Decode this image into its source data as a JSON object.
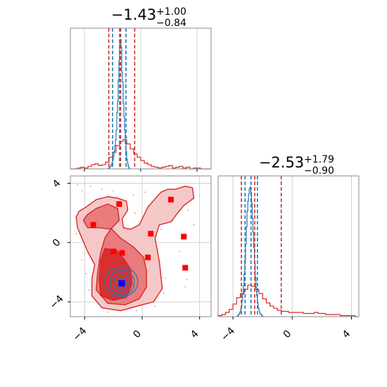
{
  "chart_data": {
    "type": "corner",
    "colors": {
      "red": "#d62728",
      "blue": "#1f77b4",
      "grid": "#d0d0d0",
      "axis": "#888888"
    },
    "panels": [
      {
        "id": "hist-param1",
        "type": "histogram",
        "title": {
          "main": "−1.43",
          "sup": "+1.00",
          "sub": "−0.84"
        },
        "xlim": [
          -5,
          5
        ],
        "xticks": [
          -4,
          0,
          4
        ],
        "quantile_lines": {
          "red": [
            -2.27,
            -1.43,
            -0.43
          ],
          "blue": [
            -2.0,
            -1.5,
            -1.05
          ]
        },
        "series": [
          {
            "name": "red",
            "bin_width": 0.25,
            "x": [
              -5.0,
              -4.75,
              -4.5,
              -4.25,
              -4.0,
              -3.75,
              -3.5,
              -3.25,
              -3.0,
              -2.75,
              -2.5,
              -2.25,
              -2.0,
              -1.75,
              -1.5,
              -1.25,
              -1.0,
              -0.75,
              -0.5,
              -0.25,
              0.0,
              0.25,
              0.5,
              0.75,
              1.0,
              1.25,
              1.5,
              1.75,
              2.0,
              2.25,
              2.5,
              2.75,
              3.0,
              3.25,
              3.5,
              3.75,
              4.0,
              4.25,
              4.5,
              4.75
            ],
            "counts": [
              0,
              0,
              1,
              2,
              1,
              3,
              5,
              6,
              4,
              5,
              8,
              14,
              20,
              28,
              33,
              35,
              30,
              24,
              18,
              14,
              10,
              7,
              5,
              3,
              2,
              1,
              2,
              3,
              4,
              1,
              2,
              3,
              1,
              2,
              0,
              1,
              1,
              0,
              0,
              0
            ]
          },
          {
            "name": "blue",
            "bin_width": 0.05,
            "x": [
              -2.3,
              -2.25,
              -2.2,
              -2.15,
              -2.1,
              -2.05,
              -2.0,
              -1.95,
              -1.9,
              -1.85,
              -1.8,
              -1.75,
              -1.7,
              -1.65,
              -1.6,
              -1.55,
              -1.5,
              -1.45,
              -1.4,
              -1.35,
              -1.3,
              -1.25,
              -1.2,
              -1.15,
              -1.1,
              -1.05,
              -1.0,
              -0.95,
              -0.9,
              -0.85,
              -0.8
            ],
            "counts": [
              1,
              1,
              2,
              3,
              4,
              6,
              9,
              13,
              18,
              24,
              30,
              40,
              58,
              70,
              92,
              112,
              130,
              134,
              126,
              100,
              90,
              68,
              54,
              40,
              26,
              18,
              10,
              6,
              3,
              1,
              0
            ]
          }
        ]
      },
      {
        "id": "hist-param2",
        "type": "histogram",
        "title": {
          "main": "−2.53",
          "sup": "+1.79",
          "sub": "−0.90"
        },
        "xlim": [
          -5,
          4.5
        ],
        "xticks": [
          -4,
          0,
          4
        ],
        "quantile_lines": {
          "red": [
            -3.43,
            -2.53,
            -0.74
          ],
          "blue": [
            -3.18,
            -2.78,
            -2.35
          ]
        },
        "series": [
          {
            "name": "red",
            "bin_width": 0.25,
            "x": [
              -5.0,
              -4.75,
              -4.5,
              -4.25,
              -4.0,
              -3.75,
              -3.5,
              -3.25,
              -3.0,
              -2.75,
              -2.5,
              -2.25,
              -2.0,
              -1.75,
              -1.5,
              -1.25,
              -1.0,
              -0.75,
              -0.5,
              -0.25,
              0.0,
              0.25,
              0.5,
              0.75,
              1.0,
              1.25,
              1.5,
              1.75,
              2.0,
              2.25,
              2.5,
              2.75,
              3.0,
              3.25,
              3.5,
              3.75,
              4.0,
              4.25
            ],
            "counts": [
              1,
              2,
              4,
              7,
              12,
              18,
              22,
              26,
              30,
              29,
              26,
              22,
              17,
              13,
              10,
              8,
              6,
              5,
              5,
              4,
              4,
              4,
              4,
              3,
              3,
              3,
              4,
              3,
              3,
              2,
              2,
              2,
              2,
              1,
              1,
              1,
              1,
              0
            ]
          },
          {
            "name": "blue",
            "bin_width": 0.05,
            "x": [
              -3.7,
              -3.65,
              -3.6,
              -3.55,
              -3.5,
              -3.45,
              -3.4,
              -3.35,
              -3.3,
              -3.25,
              -3.2,
              -3.15,
              -3.1,
              -3.05,
              -3.0,
              -2.95,
              -2.9,
              -2.85,
              -2.8,
              -2.75,
              -2.7,
              -2.65,
              -2.6,
              -2.55,
              -2.5,
              -2.45,
              -2.4,
              -2.35,
              -2.3,
              -2.25,
              -2.2,
              -2.15,
              -2.1,
              -2.05,
              -2.0
            ],
            "counts": [
              1,
              2,
              3,
              5,
              8,
              12,
              18,
              26,
              36,
              50,
              66,
              84,
              104,
              122,
              134,
              142,
              148,
              150,
              144,
              132,
              114,
              98,
              80,
              62,
              46,
              34,
              24,
              16,
              10,
              7,
              4,
              3,
              2,
              1,
              0
            ]
          }
        ]
      },
      {
        "id": "scatter-2d",
        "type": "contour-scatter",
        "xlim": [
          -5,
          4.8
        ],
        "ylim": [
          -5,
          4.5
        ],
        "xticks": [
          -4,
          0,
          4
        ],
        "yticks": [
          -4,
          0,
          4
        ],
        "red_contour_levels": [
          [
            [
              -4.6,
              1.7
            ],
            [
              -4.4,
              2.1
            ],
            [
              -3.9,
              2.4
            ],
            [
              -3.2,
              2.9
            ],
            [
              -2.4,
              3.1
            ],
            [
              -1.7,
              3.0
            ],
            [
              -1.1,
              2.8
            ],
            [
              -1.0,
              2.2
            ],
            [
              -1.4,
              1.6
            ],
            [
              -1.3,
              1.0
            ],
            [
              -0.8,
              0.9
            ],
            [
              -0.2,
              1.2
            ],
            [
              0.4,
              2.4
            ],
            [
              1.3,
              3.4
            ],
            [
              1.8,
              3.6
            ],
            [
              2.3,
              3.6
            ],
            [
              3.0,
              3.8
            ],
            [
              3.5,
              3.7
            ],
            [
              3.6,
              3.0
            ],
            [
              2.9,
              2.5
            ],
            [
              2.4,
              1.9
            ],
            [
              2.0,
              1.4
            ],
            [
              1.2,
              1.2
            ],
            [
              0.9,
              0.3
            ],
            [
              1.2,
              -1.3
            ],
            [
              1.4,
              -3.1
            ],
            [
              0.8,
              -4.0
            ],
            [
              0.0,
              -4.2
            ],
            [
              -1.5,
              -4.6
            ],
            [
              -2.8,
              -4.4
            ],
            [
              -3.5,
              -3.6
            ],
            [
              -3.5,
              -2.4
            ],
            [
              -3.3,
              -1.5
            ],
            [
              -3.8,
              -0.6
            ],
            [
              -4.2,
              0.3
            ],
            [
              -4.5,
              1.0
            ]
          ],
          [
            [
              -4.1,
              1.5
            ],
            [
              -3.8,
              1.9
            ],
            [
              -3.2,
              2.3
            ],
            [
              -2.4,
              2.6
            ],
            [
              -1.7,
              2.3
            ],
            [
              -1.6,
              1.5
            ],
            [
              -2.2,
              0.9
            ],
            [
              -2.6,
              0.3
            ],
            [
              -2.9,
              -0.7
            ],
            [
              -3.1,
              -2.0
            ],
            [
              -3.2,
              -3.2
            ],
            [
              -2.4,
              -4.1
            ],
            [
              -1.2,
              -4.2
            ],
            [
              -0.2,
              -3.8
            ],
            [
              0.3,
              -3.0
            ],
            [
              0.3,
              -1.9
            ],
            [
              0.1,
              -1.0
            ],
            [
              -0.6,
              -0.3
            ],
            [
              -1.5,
              0.3
            ],
            [
              -2.1,
              0.9
            ],
            [
              -3.0,
              1.0
            ],
            [
              -3.8,
              1.0
            ]
          ],
          [
            [
              -2.9,
              -1.2
            ],
            [
              -2.6,
              -0.4
            ],
            [
              -1.8,
              -0.5
            ],
            [
              -1.2,
              -1.2
            ],
            [
              -0.8,
              -1.8
            ],
            [
              -0.7,
              -2.8
            ],
            [
              -1.1,
              -3.7
            ],
            [
              -2.0,
              -3.9
            ],
            [
              -2.9,
              -3.6
            ],
            [
              -3.0,
              -2.5
            ]
          ]
        ],
        "blue_ellipses": [
          {
            "cx": -1.42,
            "cy": -2.75,
            "rx": 0.3,
            "ry": 0.3
          },
          {
            "cx": -1.43,
            "cy": -2.72,
            "rx": 0.55,
            "ry": 0.55
          },
          {
            "cx": -1.4,
            "cy": -2.7,
            "rx": 0.85,
            "ry": 0.85
          },
          {
            "cx": -1.45,
            "cy": -2.65,
            "rx": 1.15,
            "ry": 1.0
          }
        ],
        "red_markers": [
          {
            "x": -3.4,
            "y": 1.2
          },
          {
            "x": -1.6,
            "y": 2.6
          },
          {
            "x": 2.0,
            "y": 2.9
          },
          {
            "x": 0.6,
            "y": 0.6
          },
          {
            "x": 2.9,
            "y": 0.4
          },
          {
            "x": -2.0,
            "y": -0.6
          },
          {
            "x": -1.4,
            "y": -0.7
          },
          {
            "x": 0.4,
            "y": -1.0
          },
          {
            "x": 3.0,
            "y": -1.7
          }
        ],
        "blue_marker": {
          "x": -1.42,
          "y": -2.75
        },
        "scatter_points": [
          [
            -4.5,
            3.9
          ],
          [
            -4.2,
            3.5
          ],
          [
            -3.6,
            3.8
          ],
          [
            -2.8,
            3.6
          ],
          [
            -3.9,
            0.2
          ],
          [
            -4.6,
            0.6
          ],
          [
            -3.7,
            -0.6
          ],
          [
            -4.2,
            -1.2
          ],
          [
            -2.0,
            3.5
          ],
          [
            -0.6,
            3.2
          ],
          [
            0.2,
            3.4
          ],
          [
            0.9,
            2.8
          ],
          [
            1.4,
            2.3
          ],
          [
            2.1,
            1.5
          ],
          [
            3.2,
            2.2
          ],
          [
            3.6,
            1.2
          ],
          [
            2.6,
            -0.6
          ],
          [
            3.1,
            -2.5
          ],
          [
            3.0,
            -3.0
          ],
          [
            1.6,
            -2.4
          ],
          [
            1.5,
            -3.4
          ],
          [
            0.9,
            -4.3
          ],
          [
            -0.4,
            -4.6
          ],
          [
            -2.4,
            -4.7
          ],
          [
            -3.7,
            -3.2
          ],
          [
            -3.9,
            -2.1
          ],
          [
            -0.9,
            0.3
          ],
          [
            -0.3,
            0.7
          ],
          [
            -0.5,
            2.0
          ],
          [
            0.2,
            1.0
          ],
          [
            2.6,
            3.2
          ],
          [
            1.3,
            0.9
          ]
        ]
      }
    ]
  }
}
